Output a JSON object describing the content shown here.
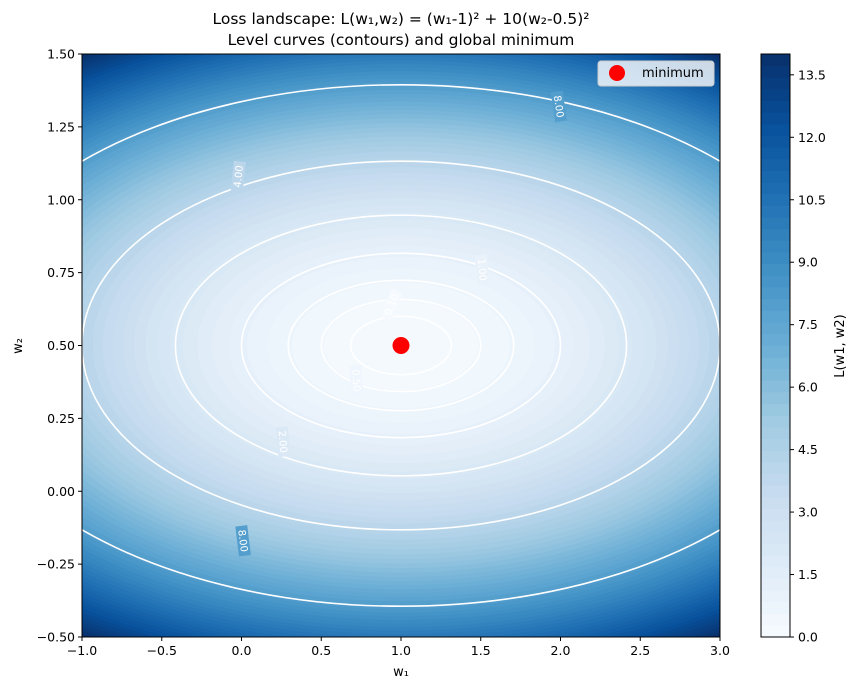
{
  "chart_data": {
    "type": "heatmap",
    "title": "Loss landscape: L(w₁,w₂) = (w₁-1)² + 10(w₂-0.5)²",
    "subtitle": "Level curves (contours) and global minimum",
    "xlabel": "w₁",
    "ylabel": "w₂",
    "xlim": [
      -1.0,
      3.0
    ],
    "ylim": [
      -0.5,
      1.5
    ],
    "x_ticks": [
      "−1.0",
      "−0.5",
      "0.0",
      "0.5",
      "1.0",
      "1.5",
      "2.0",
      "2.5",
      "3.0"
    ],
    "y_ticks": [
      "−0.50",
      "−0.25",
      "0.00",
      "0.25",
      "0.50",
      "0.75",
      "1.00",
      "1.25",
      "1.50"
    ],
    "function": {
      "a": 1.0,
      "b": 10.0,
      "x0": 1.0,
      "y0": 0.5
    },
    "colormap": "Blues",
    "contour_levels": [
      0.1,
      0.25,
      0.5,
      1.0,
      2.0,
      4.0,
      8.0
    ],
    "contour_labels": [
      {
        "text": "0.10",
        "level": 0.1,
        "x": 0.94,
        "y": 0.64
      },
      {
        "text": "0.50",
        "level": 0.5,
        "x": 0.72,
        "y": 0.38
      },
      {
        "text": "1.00",
        "level": 1.0,
        "x": 1.51,
        "y": 0.76
      },
      {
        "text": "2.00",
        "level": 2.0,
        "x": 0.26,
        "y": 0.17
      },
      {
        "text": "4.00",
        "level": 4.0,
        "x": -0.02,
        "y": 1.08
      },
      {
        "text": "8.00",
        "level": 8.0,
        "x": 1.99,
        "y": 1.32
      },
      {
        "text": "8.00",
        "level": 8.0,
        "x": 0.01,
        "y": -0.17
      }
    ],
    "colorbar": {
      "label": "L(w1, w2)",
      "range": [
        0.0,
        14.0
      ],
      "ticks": [
        "0.0",
        "1.5",
        "3.0",
        "4.5",
        "6.0",
        "7.5",
        "9.0",
        "10.5",
        "12.0",
        "13.5"
      ]
    },
    "points": [
      {
        "name": "minimum",
        "x": 1.0,
        "y": 0.5,
        "color": "#ff0000"
      }
    ],
    "legend": {
      "placement": "top-right",
      "entries": [
        "minimum"
      ]
    },
    "grid": false
  }
}
